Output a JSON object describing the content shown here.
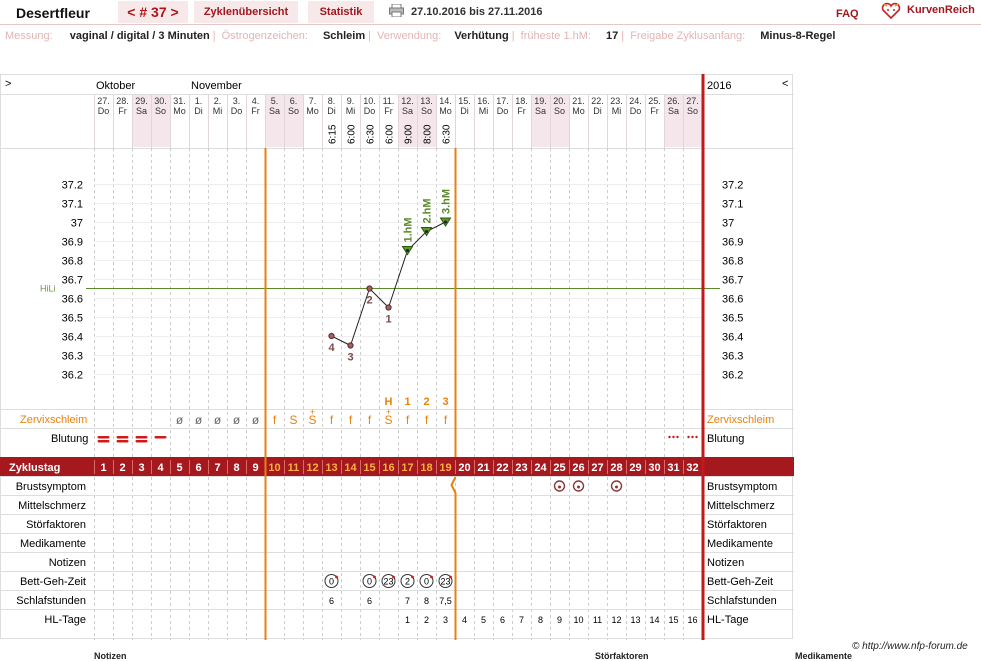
{
  "header": {
    "username": "Desertfleur",
    "cycle_tab": "< # 37 >",
    "tab_overview": "Zyklenübersicht",
    "tab_stats": "Statistik",
    "date_range": "27.10.2016 bis 27.11.2016",
    "faq": "FAQ",
    "brand": "KurvenReich",
    "printer_icon": "printer-icon",
    "brand_icon": "heart-logo-icon"
  },
  "info": {
    "measure_label": "Messung:",
    "measure_value": "vaginal / digital / 3 Minuten",
    "estrogen_label": "Östrogenzeichen:",
    "estrogen_value": "Schleim",
    "use_label": "Verwendung:",
    "use_value": "Verhütung",
    "earliest_label": "früheste 1.hM:",
    "earliest_value": "17",
    "release_label": "Freigabe Zyklusanfang:",
    "release_value": "Minus-8-Regel"
  },
  "chart_nav": {
    "left": ">",
    "right": "<",
    "year": "2016"
  },
  "chart_data": {
    "type": "line",
    "months": [
      {
        "label": "Oktober",
        "start_col": 0
      },
      {
        "label": "November",
        "start_col": 5
      }
    ],
    "days": [
      {
        "d": "27.",
        "w": "Do"
      },
      {
        "d": "28.",
        "w": "Fr"
      },
      {
        "d": "29.",
        "w": "Sa"
      },
      {
        "d": "30.",
        "w": "So"
      },
      {
        "d": "31.",
        "w": "Mo"
      },
      {
        "d": "1.",
        "w": "Di"
      },
      {
        "d": "2.",
        "w": "Mi"
      },
      {
        "d": "3.",
        "w": "Do"
      },
      {
        "d": "4.",
        "w": "Fr"
      },
      {
        "d": "5.",
        "w": "Sa"
      },
      {
        "d": "6.",
        "w": "So"
      },
      {
        "d": "7.",
        "w": "Mo"
      },
      {
        "d": "8.",
        "w": "Di"
      },
      {
        "d": "9.",
        "w": "Mi"
      },
      {
        "d": "10.",
        "w": "Do"
      },
      {
        "d": "11.",
        "w": "Fr"
      },
      {
        "d": "12.",
        "w": "Sa"
      },
      {
        "d": "13.",
        "w": "So"
      },
      {
        "d": "14.",
        "w": "Mo"
      },
      {
        "d": "15.",
        "w": "Di"
      },
      {
        "d": "16.",
        "w": "Mi"
      },
      {
        "d": "17.",
        "w": "Do"
      },
      {
        "d": "18.",
        "w": "Fr"
      },
      {
        "d": "19.",
        "w": "Sa"
      },
      {
        "d": "20.",
        "w": "So"
      },
      {
        "d": "21.",
        "w": "Mo"
      },
      {
        "d": "22.",
        "w": "Di"
      },
      {
        "d": "23.",
        "w": "Mi"
      },
      {
        "d": "24.",
        "w": "Do"
      },
      {
        "d": "25.",
        "w": "Fr"
      },
      {
        "d": "26.",
        "w": "Sa"
      },
      {
        "d": "27.",
        "w": "So"
      }
    ],
    "weekend_cols": [
      2,
      3,
      9,
      10,
      16,
      17,
      23,
      24,
      30,
      31
    ],
    "measure_times": [
      {
        "col": 12,
        "t": "6:15"
      },
      {
        "col": 13,
        "t": "6:00"
      },
      {
        "col": 14,
        "t": "6:30"
      },
      {
        "col": 15,
        "t": "6:00"
      },
      {
        "col": 16,
        "t": "9:00"
      },
      {
        "col": 17,
        "t": "8:00"
      },
      {
        "col": 18,
        "t": "6:30"
      }
    ],
    "ylim": [
      36.2,
      37.2
    ],
    "yticks": [
      "37.2",
      "37.1",
      "37",
      "36.9",
      "36.8",
      "36.7",
      "36.6",
      "36.5",
      "36.4",
      "36.3",
      "36.2"
    ],
    "coverline": {
      "label": "HiLi",
      "value": 36.65
    },
    "temps": [
      {
        "col": 12,
        "v": 36.4,
        "tri": false,
        "lbl": "4"
      },
      {
        "col": 13,
        "v": 36.35,
        "tri": false,
        "lbl": "3"
      },
      {
        "col": 14,
        "v": 36.65,
        "tri": false,
        "lbl": "2"
      },
      {
        "col": 15,
        "v": 36.55,
        "tri": false,
        "lbl": "1"
      },
      {
        "col": 16,
        "v": 36.85,
        "tri": true,
        "lbl": "1.hM"
      },
      {
        "col": 17,
        "v": 36.95,
        "tri": true,
        "lbl": "2.hM"
      },
      {
        "col": 18,
        "v": 37.0,
        "tri": true,
        "lbl": "3.hM"
      }
    ],
    "mucus_peak": [
      {
        "col": 15,
        "t": "H"
      },
      {
        "col": 16,
        "t": "1"
      },
      {
        "col": 17,
        "t": "2"
      },
      {
        "col": 18,
        "t": "3"
      }
    ],
    "mucus_label": "Zervixschleim",
    "mucus": [
      {
        "col": 4,
        "t": "ø"
      },
      {
        "col": 5,
        "t": "ø"
      },
      {
        "col": 6,
        "t": "ø"
      },
      {
        "col": 7,
        "t": "ø"
      },
      {
        "col": 8,
        "t": "ø"
      },
      {
        "col": 9,
        "t": "f"
      },
      {
        "col": 10,
        "t": "S"
      },
      {
        "col": 11,
        "t": "S"
      },
      {
        "col": 12,
        "t": "f"
      },
      {
        "col": 13,
        "t": "f"
      },
      {
        "col": 14,
        "t": "f"
      },
      {
        "col": 15,
        "t": "S"
      },
      {
        "col": 16,
        "t": "f"
      },
      {
        "col": 17,
        "t": "f"
      },
      {
        "col": 18,
        "t": "f"
      }
    ],
    "mucus_plus": [
      11,
      15
    ],
    "bleeding_label": "Blutung",
    "bleeding": [
      {
        "col": 0,
        "type": "heavy"
      },
      {
        "col": 1,
        "type": "heavy"
      },
      {
        "col": 2,
        "type": "heavy"
      },
      {
        "col": 3,
        "type": "light"
      },
      {
        "col": 30,
        "type": "spot"
      },
      {
        "col": 31,
        "type": "spot"
      }
    ],
    "cycleday_label": "Zyklustag",
    "cycle_days": [
      "1",
      "2",
      "3",
      "4",
      "5",
      "6",
      "7",
      "8",
      "9",
      "10",
      "11",
      "12",
      "13",
      "14",
      "15",
      "16",
      "17",
      "18",
      "19",
      "20",
      "21",
      "22",
      "23",
      "24",
      "25",
      "26",
      "27",
      "28",
      "29",
      "30",
      "31",
      "32"
    ],
    "fertile_cols": [
      9,
      10,
      11,
      12,
      13,
      14,
      15,
      16,
      17,
      18
    ],
    "rows": [
      "Brustsymptom",
      "Mittelschmerz",
      "Störfaktoren",
      "Medikamente",
      "Notizen",
      "Bett-Geh-Zeit",
      "Schlafstunden",
      "HL-Tage"
    ],
    "breast_cols": [
      24,
      25,
      27
    ],
    "bedtimes": [
      {
        "col": 12,
        "t": "0"
      },
      {
        "col": 14,
        "t": "0"
      },
      {
        "col": 15,
        "t": "23"
      },
      {
        "col": 16,
        "t": "2"
      },
      {
        "col": 17,
        "t": "0"
      },
      {
        "col": 18,
        "t": "23"
      }
    ],
    "sleep": [
      {
        "col": 12,
        "t": "6"
      },
      {
        "col": 14,
        "t": "6"
      },
      {
        "col": 16,
        "t": "7"
      },
      {
        "col": 17,
        "t": "8"
      },
      {
        "col": 18,
        "t": "7,5"
      }
    ],
    "hl_days": [
      "1",
      "2",
      "3",
      "4",
      "5",
      "6",
      "7",
      "8",
      "9",
      "10",
      "11",
      "12",
      "13",
      "14",
      "15",
      "16"
    ],
    "hl_start_col": 16
  },
  "footer": {
    "copyright": "© http://www.nfp-forum.de",
    "notes_label": "Notizen",
    "disturb_label": "Störfaktoren",
    "meds_label": "Medikamente"
  }
}
